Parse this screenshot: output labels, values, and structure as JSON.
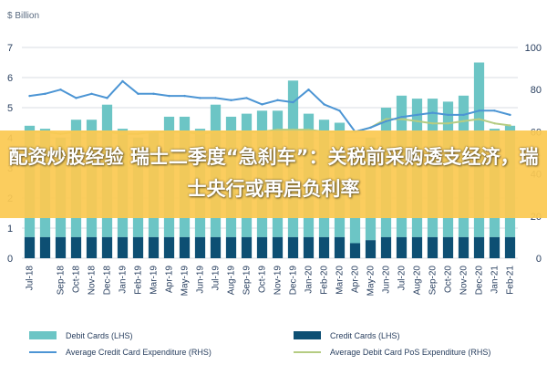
{
  "headline": "配资炒股经验 瑞士二季度“急刹车”：关税前采购透支经济，瑞士央行或再启负利率",
  "colors": {
    "debit": "#6cc5c5",
    "credit": "#0d4f73",
    "credit_line": "#4c95d4",
    "debit_line": "#b5cc82",
    "banner": "#fbc952",
    "grid": "#d8dde3"
  },
  "chart_data": {
    "type": "bar",
    "categories": [
      "Jul-18",
      "Aug-18",
      "Sep-18",
      "Oct-18",
      "Nov-18",
      "Dec-18",
      "Jan-19",
      "Feb-19",
      "Mar-19",
      "Apr-19",
      "May-19",
      "Jun-19",
      "Jul-19",
      "Aug-19",
      "Sep-19",
      "Oct-19",
      "Nov-19",
      "Dec-19",
      "Jan-20",
      "Feb-20",
      "Mar-20",
      "Apr-20",
      "May-20",
      "Jun-20",
      "Jul-20",
      "Aug-20",
      "Sep-20",
      "Oct-20",
      "Nov-20",
      "Dec-20",
      "Jan-21",
      "Feb-21"
    ],
    "x_tick_labels": [
      "Jul-18",
      "",
      "Sep-18",
      "Oct-18",
      "Nov-18",
      "Dec-18",
      "Jan-19",
      "Feb-19",
      "Mar-19",
      "Apr-19",
      "May-19",
      "Jun-19",
      "Jul-19",
      "Aug-19",
      "Sep-19",
      "Oct-19",
      "Nov-19",
      "Dec-19",
      "Jan-20",
      "Feb-20",
      "Mar-20",
      "Apr-20",
      "May-20",
      "Jun-20",
      "Jul-20",
      "Aug-20",
      "Sep-20",
      "Oct-20",
      "Nov-20",
      "Dec-20",
      "Jan-21",
      "Feb-21"
    ],
    "left_axis": {
      "unit_label": "$ Billion",
      "ylim": [
        0,
        7
      ],
      "ticks": [
        "0",
        "1",
        "2",
        "3",
        "4",
        "5",
        "6",
        "7"
      ]
    },
    "right_axis": {
      "ylim": [
        0,
        100
      ],
      "ticks": [
        "0",
        "20",
        "40",
        "60",
        "80",
        "100"
      ]
    },
    "series": [
      {
        "name": "Debit Cards (LHS)",
        "type": "stacked-bar",
        "axis": "left",
        "values": [
          4.4,
          4.3,
          4.0,
          4.6,
          4.6,
          5.1,
          4.3,
          4.0,
          4.2,
          4.7,
          4.7,
          4.3,
          5.1,
          4.7,
          4.8,
          4.9,
          4.9,
          5.9,
          4.8,
          4.6,
          4.5,
          3.7,
          4.0,
          5.0,
          5.4,
          5.3,
          5.3,
          5.2,
          5.4,
          6.5,
          4.3,
          4.4
        ]
      },
      {
        "name": "Credit Cards (LHS)",
        "type": "bar",
        "axis": "left",
        "values": [
          0.7,
          0.7,
          0.7,
          0.7,
          0.7,
          0.7,
          0.7,
          0.7,
          0.7,
          0.7,
          0.7,
          0.7,
          0.7,
          0.7,
          0.7,
          0.7,
          0.7,
          0.7,
          0.7,
          0.7,
          0.7,
          0.5,
          0.6,
          0.7,
          0.7,
          0.7,
          0.7,
          0.7,
          0.7,
          0.7,
          0.7,
          0.7
        ]
      },
      {
        "name": "Average Credit Card Expenditure (RHS)",
        "type": "line",
        "axis": "right",
        "values": [
          77,
          78,
          80,
          76,
          78,
          76,
          84,
          78,
          78,
          77,
          77,
          76,
          76,
          75,
          76,
          73,
          75,
          74,
          80,
          73,
          70,
          60,
          62,
          65,
          67,
          68,
          69,
          68,
          68,
          70,
          70,
          68
        ]
      },
      {
        "name": "Average Debit Card PoS Expenditure (RHS)",
        "type": "line",
        "axis": "right",
        "values": [
          60,
          60,
          59,
          60,
          60,
          60,
          59,
          59,
          60,
          60,
          60,
          59,
          60,
          60,
          60,
          60,
          61,
          61,
          61,
          60,
          60,
          60,
          62,
          66,
          66,
          65,
          64,
          64,
          65,
          66,
          64,
          63
        ]
      }
    ],
    "grid": true,
    "legend_position": "bottom"
  }
}
